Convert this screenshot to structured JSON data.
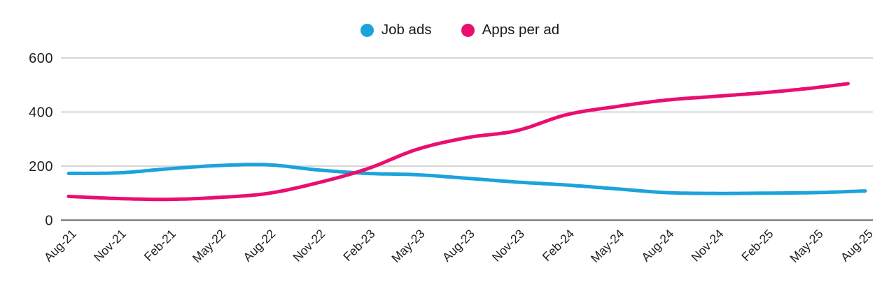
{
  "legend": {
    "items": [
      {
        "label": "Job ads",
        "color": "#1ca3dc"
      },
      {
        "label": "Apps per ad",
        "color": "#ea0e70"
      }
    ]
  },
  "chart_data": {
    "type": "line",
    "title": "",
    "xlabel": "",
    "ylabel": "",
    "x": [
      "Aug-21",
      "Nov-21",
      "Feb-21",
      "May-22",
      "Aug-22",
      "Nov-22",
      "Feb-23",
      "May-23",
      "Aug-23",
      "Nov-23",
      "Feb-24",
      "May-24",
      "Aug-24",
      "Nov-24",
      "Feb-25",
      "May-25",
      "Aug-25"
    ],
    "series": [
      {
        "name": "Job ads",
        "color": "#1ca3dc",
        "values": [
          173,
          175,
          190,
          202,
          205,
          186,
          173,
          168,
          155,
          141,
          130,
          116,
          102,
          99,
          100,
          102,
          108
        ]
      },
      {
        "name": "Apps per ad",
        "color": "#ea0e70",
        "values": [
          88,
          80,
          77,
          84,
          99,
          138,
          190,
          262,
          305,
          331,
          390,
          420,
          444,
          458,
          472,
          490,
          513
        ]
      }
    ],
    "y_ticks": [
      0,
      200,
      400,
      600
    ],
    "ylim": [
      0,
      600
    ],
    "grid": "horizontal",
    "legend_position": "top-center"
  },
  "colors": {
    "grid": "#d6d6d6",
    "zero_axis": "#7f7f7f",
    "tick_text": "#212121"
  }
}
